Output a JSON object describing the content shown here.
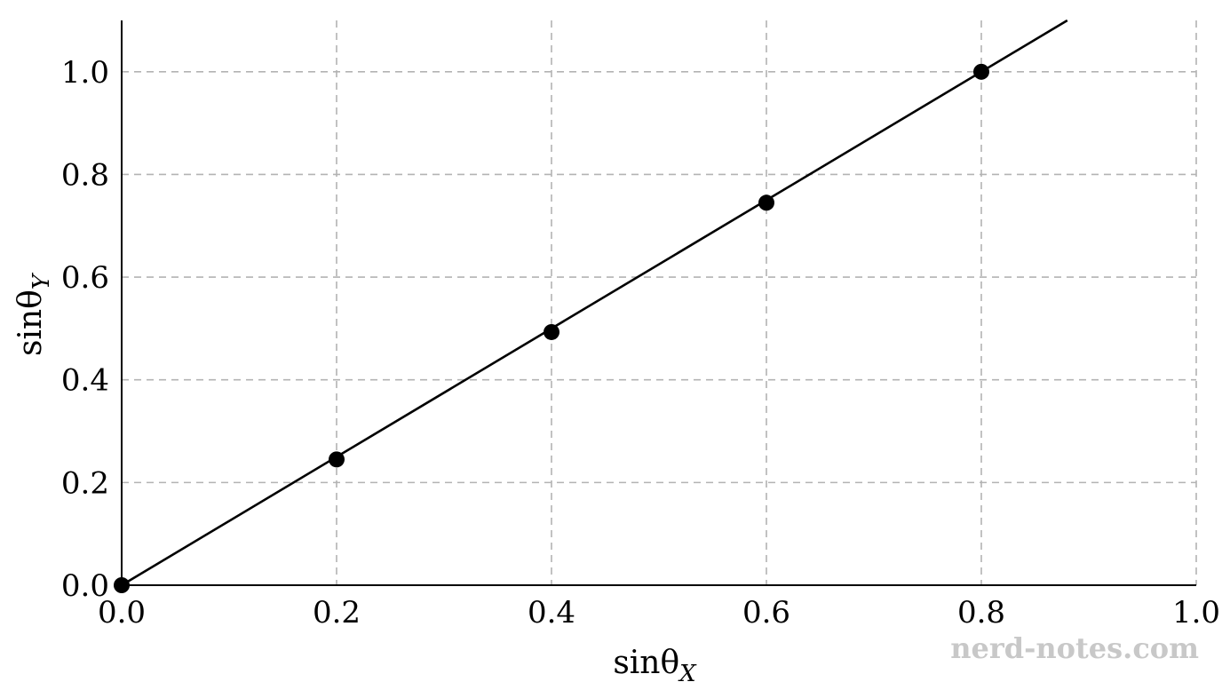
{
  "chart_data": {
    "type": "scatter",
    "xlabel": {
      "base": "sinθ",
      "sub": "X"
    },
    "ylabel": {
      "base": "sinθ",
      "sub": "Y"
    },
    "xlim": [
      0,
      1.0
    ],
    "ylim": [
      0,
      1.1
    ],
    "xticks": [
      0.0,
      0.2,
      0.4,
      0.6,
      0.8,
      1.0
    ],
    "xtick_labels": [
      "0.0",
      "0.2",
      "0.4",
      "0.6",
      "0.8",
      "1.0"
    ],
    "yticks": [
      0.0,
      0.2,
      0.4,
      0.6,
      0.8,
      1.0
    ],
    "ytick_labels": [
      "0.0",
      "0.2",
      "0.4",
      "0.6",
      "0.8",
      "1.0"
    ],
    "grid": true,
    "series": [
      {
        "kind": "points",
        "x": [
          0.0,
          0.2,
          0.4,
          0.6,
          0.8
        ],
        "y": [
          0.0,
          0.245,
          0.493,
          0.745,
          1.0
        ]
      },
      {
        "kind": "fit-line",
        "x": [
          0.0,
          0.88
        ],
        "y": [
          0.0,
          1.1
        ]
      }
    ],
    "colors": {
      "marks": "#000000",
      "grid": "#b3b3b3"
    }
  },
  "watermark": "nerd-notes.com"
}
